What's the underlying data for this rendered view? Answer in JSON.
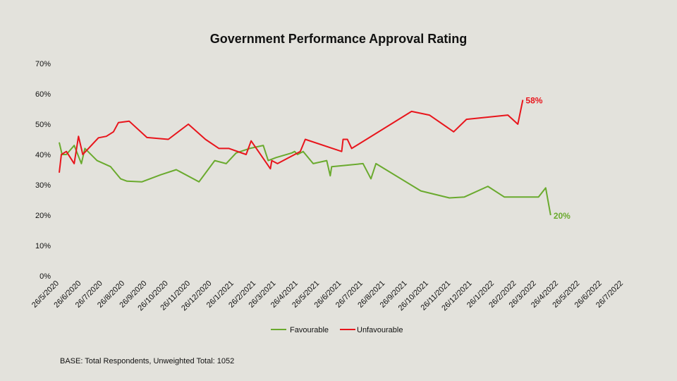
{
  "chart_data": {
    "type": "line",
    "title": "Government Performance Approval Rating",
    "xlabel": "",
    "ylabel": "",
    "ylim": [
      0,
      70
    ],
    "y_ticks": [
      "0%",
      "10%",
      "20%",
      "30%",
      "40%",
      "50%",
      "60%",
      "70%"
    ],
    "x_ticks": [
      "26/5/2020",
      "26/6/2020",
      "26/7/2020",
      "26/8/2020",
      "26/9/2020",
      "26/10/2020",
      "26/11/2020",
      "26/12/2020",
      "26/1/2021",
      "26/2/2021",
      "26/3/2021",
      "26/4/2021",
      "26/5/2021",
      "26/6/2021",
      "26/7/2021",
      "26/8/2021",
      "26/9/2021",
      "26/10/2021",
      "26/11/2021",
      "26/12/2021",
      "26/1/2022",
      "26/2/2022",
      "26/3/2022",
      "26/4/2022",
      "26/5/2022",
      "26/6/2022",
      "26/7/2022"
    ],
    "x_start": "26/5/2020",
    "grid": false,
    "legend_position": "bottom",
    "series": [
      {
        "name": "Favourable",
        "color": "#6aaa2e",
        "end_label": "20%",
        "points": [
          [
            "2020-05-26",
            44
          ],
          [
            "2020-05-30",
            40
          ],
          [
            "2020-06-05",
            40
          ],
          [
            "2020-06-16",
            43
          ],
          [
            "2020-06-26",
            37
          ],
          [
            "2020-07-01",
            42
          ],
          [
            "2020-07-18",
            38
          ],
          [
            "2020-08-06",
            36
          ],
          [
            "2020-08-20",
            32
          ],
          [
            "2020-08-29",
            31.2
          ],
          [
            "2020-09-19",
            31
          ],
          [
            "2020-10-15",
            33.3
          ],
          [
            "2020-11-06",
            35
          ],
          [
            "2020-12-08",
            31
          ],
          [
            "2020-12-30",
            38
          ],
          [
            "2021-01-15",
            37
          ],
          [
            "2021-01-29",
            40.5
          ],
          [
            "2021-02-17",
            42
          ],
          [
            "2021-03-08",
            43
          ],
          [
            "2021-03-15",
            38
          ],
          [
            "2021-03-26",
            39
          ],
          [
            "2021-04-17",
            40.5
          ],
          [
            "2021-04-21",
            41
          ],
          [
            "2021-04-25",
            40
          ],
          [
            "2021-05-03",
            41
          ],
          [
            "2021-05-17",
            37
          ],
          [
            "2021-06-05",
            38
          ],
          [
            "2021-06-10",
            33
          ],
          [
            "2021-06-12",
            36
          ],
          [
            "2021-07-26",
            37
          ],
          [
            "2021-08-06",
            32
          ],
          [
            "2021-08-13",
            37
          ],
          [
            "2021-10-15",
            28
          ],
          [
            "2021-11-24",
            25.7
          ],
          [
            "2021-12-15",
            26
          ],
          [
            "2022-01-17",
            29.5
          ],
          [
            "2022-02-09",
            26
          ],
          [
            "2022-03-29",
            26
          ],
          [
            "2022-04-08",
            29
          ],
          [
            "2022-04-15",
            20
          ]
        ]
      },
      {
        "name": "Unfavourable",
        "color": "#e8151c",
        "end_label": "58%",
        "points": [
          [
            "2020-05-26",
            34
          ],
          [
            "2020-05-29",
            40
          ],
          [
            "2020-06-05",
            41
          ],
          [
            "2020-06-16",
            37
          ],
          [
            "2020-06-22",
            46
          ],
          [
            "2020-06-28",
            40
          ],
          [
            "2020-07-20",
            45.5
          ],
          [
            "2020-07-31",
            46
          ],
          [
            "2020-08-10",
            47.5
          ],
          [
            "2020-08-17",
            50.5
          ],
          [
            "2020-09-01",
            51
          ],
          [
            "2020-09-26",
            45.6
          ],
          [
            "2020-10-26",
            45
          ],
          [
            "2020-11-23",
            50
          ],
          [
            "2020-12-17",
            45
          ],
          [
            "2021-01-05",
            42
          ],
          [
            "2021-01-19",
            42
          ],
          [
            "2021-02-12",
            40
          ],
          [
            "2021-02-19",
            44.5
          ],
          [
            "2021-03-18",
            35.3
          ],
          [
            "2021-03-20",
            38
          ],
          [
            "2021-03-28",
            37
          ],
          [
            "2021-04-29",
            41
          ],
          [
            "2021-05-06",
            45
          ],
          [
            "2021-06-26",
            41
          ],
          [
            "2021-06-28",
            45
          ],
          [
            "2021-07-04",
            45
          ],
          [
            "2021-07-10",
            42
          ],
          [
            "2021-10-02",
            54.2
          ],
          [
            "2021-10-27",
            53
          ],
          [
            "2021-11-30",
            47.5
          ],
          [
            "2021-12-18",
            51.6
          ],
          [
            "2022-02-14",
            53
          ],
          [
            "2022-02-28",
            50
          ],
          [
            "2022-03-07",
            58
          ]
        ]
      }
    ],
    "footnote": "BASE: Total Respondents, Unweighted Total: 1052"
  }
}
